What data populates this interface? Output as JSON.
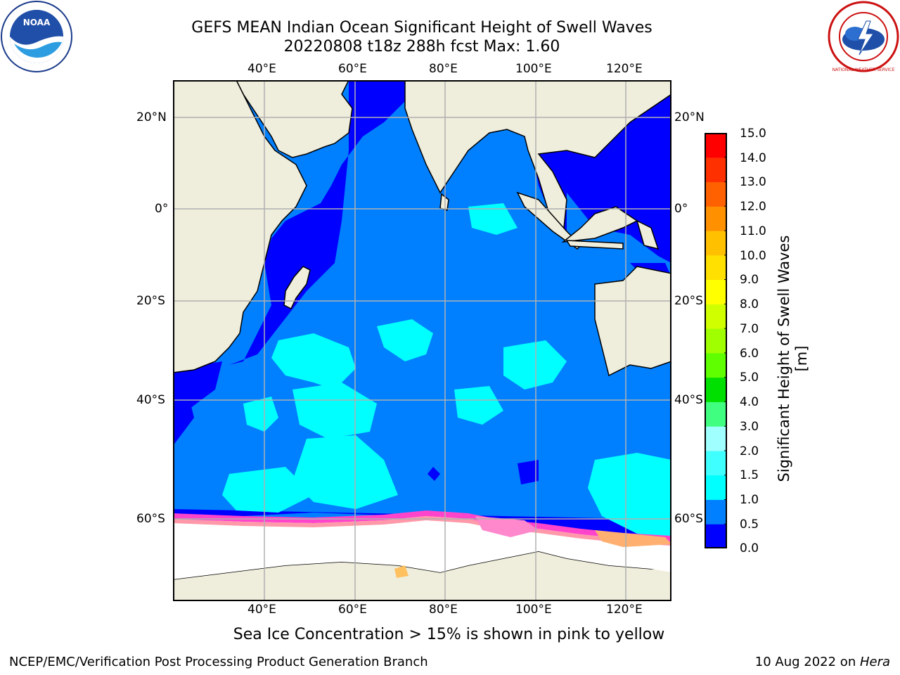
{
  "header": {
    "title": "GEFS MEAN Indian Ocean Significant Height of Swell Waves",
    "subtitle": "20220808 t18z 288h fcst   Max: 1.60"
  },
  "logos": {
    "left": "NOAA",
    "right": "NATIONAL WEATHER SERVICE"
  },
  "map": {
    "lon_labels": [
      "40°E",
      "60°E",
      "80°E",
      "100°E",
      "120°E"
    ],
    "lat_labels": [
      "20°N",
      "0°",
      "20°S",
      "40°S",
      "60°S"
    ],
    "lon_range": [
      20,
      130
    ],
    "lat_range": [
      -72,
      28
    ],
    "gridlines": true
  },
  "colorbar": {
    "label": "Significant Height of Swell Waves [m]",
    "ticks": [
      "15.0",
      "14.0",
      "13.0",
      "12.0",
      "11.0",
      "10.0",
      "9.0",
      "8.0",
      "7.0",
      "6.0",
      "5.0",
      "4.0",
      "3.0",
      "2.0",
      "1.5",
      "1.0",
      "0.5",
      "0.0"
    ],
    "colors": [
      "#0000ff",
      "#0080ff",
      "#00ffff",
      "#40ffff",
      "#a0ffff",
      "#40ff80",
      "#00e000",
      "#60ff00",
      "#a0ff00",
      "#d0ff00",
      "#ffff00",
      "#ffe000",
      "#ffc000",
      "#ff9000",
      "#ff6000",
      "#ff3000",
      "#ff0000"
    ]
  },
  "note": "Sea Ice Concentration > 15% is shown in pink to yellow",
  "footer": {
    "left": "NCEP/EMC/Verification Post Processing Product Generation Branch",
    "right_prefix": "10 Aug 2022 on ",
    "right_machine": "Hera"
  }
}
